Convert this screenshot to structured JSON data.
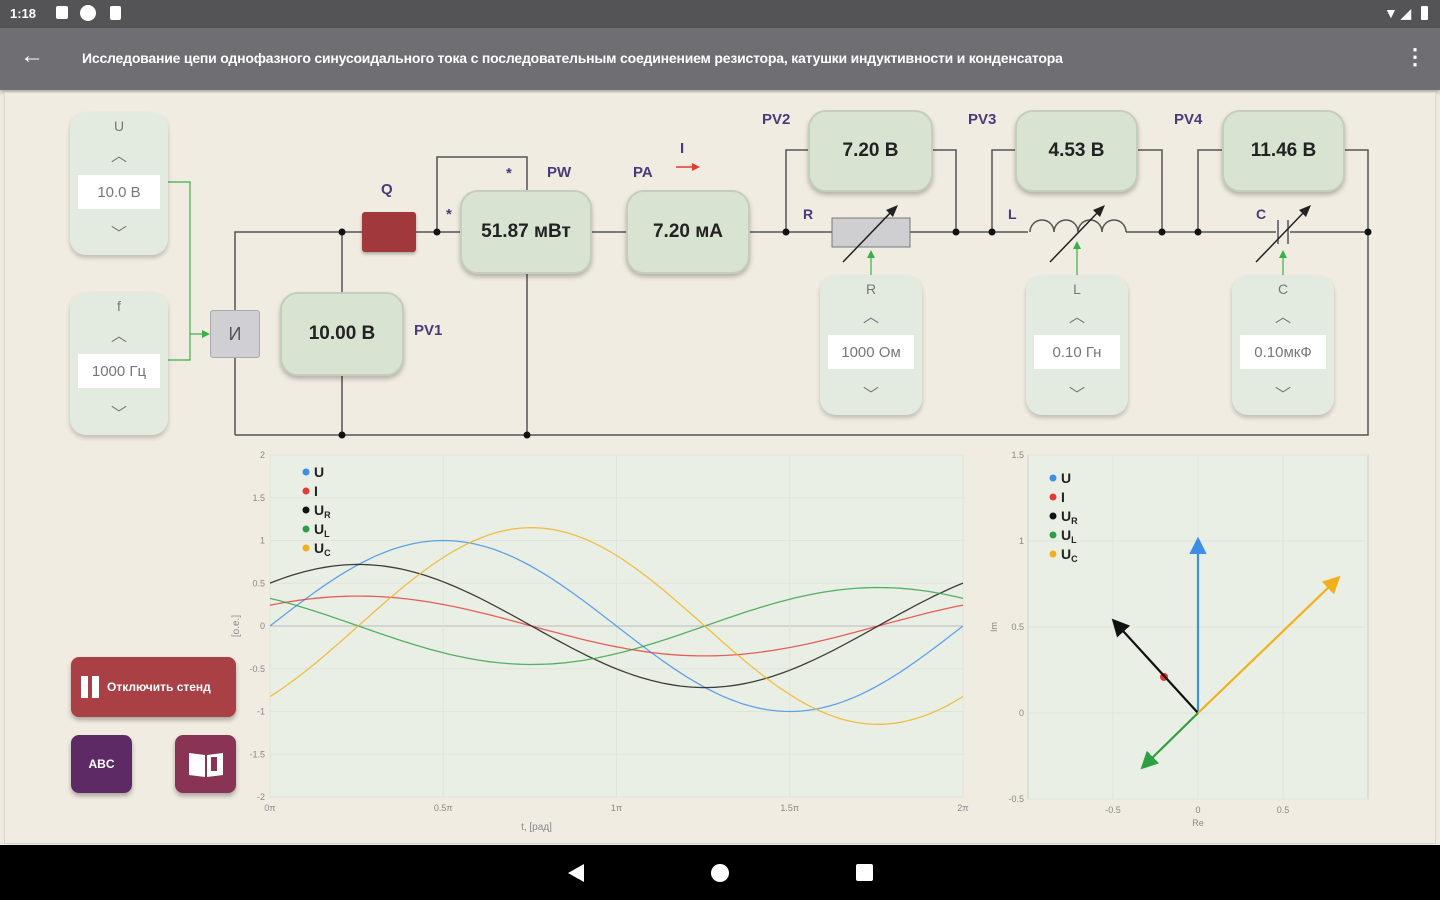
{
  "status_bar": {
    "time": "1:18"
  },
  "app_bar": {
    "title": "Исследование цепи однофазного синусоидального тока с последовательным соединением резистора, катушки индуктивности и конденсатора",
    "back_icon": "arrow-left-icon",
    "menu_icon": "more-vert-icon"
  },
  "source": {
    "u_label": "U",
    "u_value": "10.0  В",
    "f_label": "f",
    "f_value": "1000 Гц",
    "source_label": "И"
  },
  "circuit": {
    "q_label": "Q",
    "pw_label": "PW",
    "pa_label": "PA",
    "i_label": "I",
    "star": "*",
    "pv1": {
      "label": "PV1",
      "value": "10.00 В"
    },
    "pw": {
      "value": "51.87 мВт"
    },
    "pa": {
      "value": "7.20 мА"
    },
    "pv2": {
      "label": "PV2",
      "value": "7.20 В"
    },
    "pv3": {
      "label": "PV3",
      "value": "4.53 В"
    },
    "pv4": {
      "label": "PV4",
      "value": "11.46 В"
    },
    "r": {
      "label": "R",
      "control_label": "R",
      "value": "1000 Ом"
    },
    "l": {
      "label": "L",
      "control_label": "L",
      "value": "0.10  Гн"
    },
    "c": {
      "label": "C",
      "control_label": "C",
      "value": "0.10мкФ"
    },
    "switch_color": "#a0383c"
  },
  "buttons": {
    "stop_label": "Отключить стенд",
    "abc_label": "ABC",
    "book_icon": "book-icon",
    "stop_color": "#a84045",
    "abc_color": "#5e2a66",
    "book_color": "#8a3455"
  },
  "chart_data": [
    {
      "type": "line",
      "xlabel": "t, [рад]",
      "ylabel": "[о.е.]",
      "xlim": [
        0,
        6.2832
      ],
      "ylim": [
        -2,
        2
      ],
      "xticks": [
        "0π",
        "0.5π",
        "1π",
        "1.5π",
        "2π"
      ],
      "yticks": [
        "-2",
        "-1.5",
        "-1",
        "-0.5",
        "0",
        "0.5",
        "1",
        "1.5",
        "2"
      ],
      "grid": true,
      "legend": "top-left",
      "series": [
        {
          "name": "U",
          "sub": "",
          "color": "#3d8fe6",
          "amplitude": 1.0,
          "phase_rad": 0
        },
        {
          "name": "I",
          "sub": "",
          "color": "#e53935",
          "amplitude": 0.35,
          "phase_rad": 0.77
        },
        {
          "name": "U",
          "sub": "R",
          "color": "#111111",
          "amplitude": 0.72,
          "phase_rad": 0.77
        },
        {
          "name": "U",
          "sub": "L",
          "color": "#2ea043",
          "amplitude": 0.45,
          "phase_rad": 2.34
        },
        {
          "name": "U",
          "sub": "C",
          "color": "#f2b01e",
          "amplitude": 1.15,
          "phase_rad": -0.8
        }
      ]
    },
    {
      "type": "vector",
      "xlabel": "Re",
      "ylabel": "Im",
      "xlim": [
        -1,
        1
      ],
      "ylim": [
        -0.5,
        1.5
      ],
      "xticks": [
        "-0.5",
        "0",
        "0.5"
      ],
      "yticks": [
        "-0.5",
        "0",
        "0.5",
        "1",
        "1.5"
      ],
      "grid": true,
      "legend": "top-left",
      "series": [
        {
          "name": "U",
          "sub": "",
          "color": "#3d8fe6",
          "x": 0,
          "y": 1.0
        },
        {
          "name": "I",
          "sub": "",
          "color": "#e53935",
          "x": -0.2,
          "y": 0.21
        },
        {
          "name": "U",
          "sub": "R",
          "color": "#111111",
          "x": -0.49,
          "y": 0.53
        },
        {
          "name": "U",
          "sub": "L",
          "color": "#2ea043",
          "x": -0.32,
          "y": -0.31
        },
        {
          "name": "U",
          "sub": "C",
          "color": "#f2b01e",
          "x": 0.82,
          "y": 0.78
        }
      ]
    }
  ]
}
